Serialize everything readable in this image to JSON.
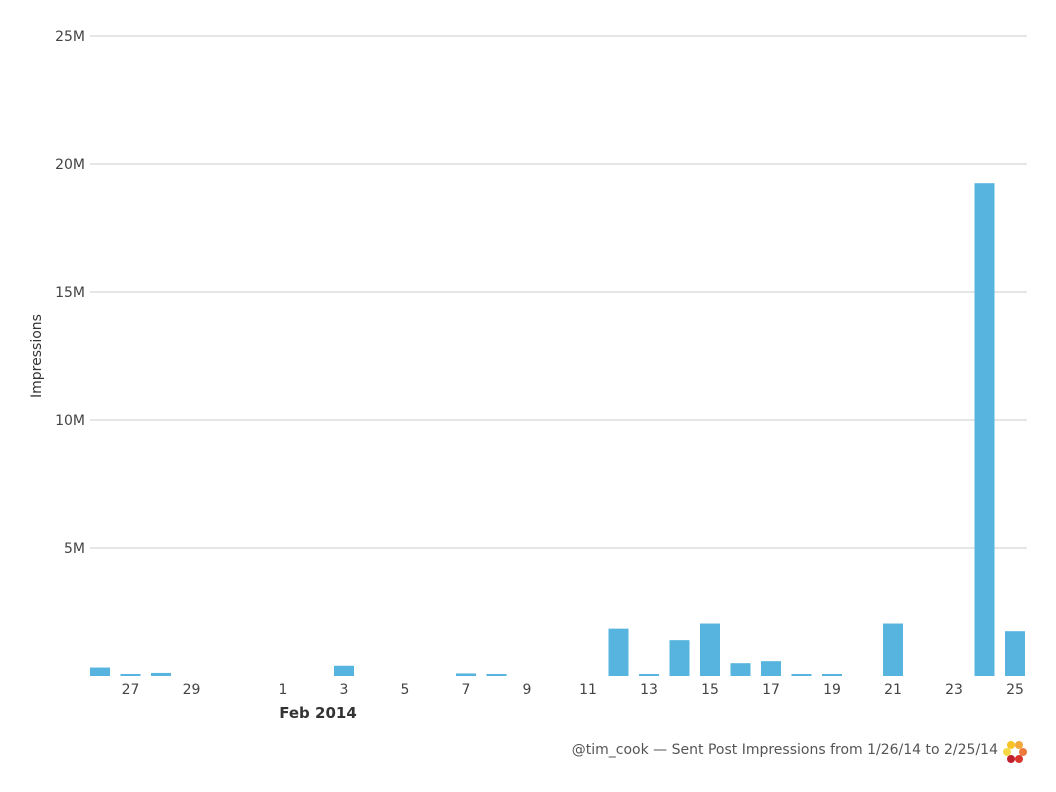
{
  "chart_data": {
    "type": "bar",
    "title": "",
    "xlabel": "",
    "ylabel": "Impressions",
    "ylim": [
      0,
      25000000
    ],
    "yticks": [
      {
        "value": 5000000,
        "label": "5M"
      },
      {
        "value": 10000000,
        "label": "10M"
      },
      {
        "value": 15000000,
        "label": "15M"
      },
      {
        "value": 20000000,
        "label": "20M"
      },
      {
        "value": 25000000,
        "label": "25M"
      }
    ],
    "grid": true,
    "legend": "none",
    "bar_color": "#56b4df",
    "grid_color": "#dddddd",
    "categories": [
      "2014-01-26",
      "2014-01-27",
      "2014-01-28",
      "2014-01-29",
      "2014-01-30",
      "2014-01-31",
      "2014-02-01",
      "2014-02-02",
      "2014-02-03",
      "2014-02-04",
      "2014-02-05",
      "2014-02-06",
      "2014-02-07",
      "2014-02-08",
      "2014-02-09",
      "2014-02-10",
      "2014-02-11",
      "2014-02-12",
      "2014-02-13",
      "2014-02-14",
      "2014-02-15",
      "2014-02-16",
      "2014-02-17",
      "2014-02-18",
      "2014-02-19",
      "2014-02-20",
      "2014-02-21",
      "2014-02-22",
      "2014-02-23",
      "2014-02-24",
      "2014-02-25"
    ],
    "values": [
      330000,
      50000,
      120000,
      0,
      0,
      0,
      0,
      0,
      400000,
      0,
      0,
      0,
      100000,
      60000,
      0,
      0,
      0,
      1850000,
      60000,
      1400000,
      2050000,
      500000,
      580000,
      60000,
      60000,
      0,
      2050000,
      0,
      0,
      19250000,
      1750000
    ],
    "xtick_labels": [
      {
        "index": 1,
        "label": "27"
      },
      {
        "index": 3,
        "label": "29"
      },
      {
        "index": 6,
        "label": "1"
      },
      {
        "index": 8,
        "label": "3"
      },
      {
        "index": 10,
        "label": "5"
      },
      {
        "index": 12,
        "label": "7"
      },
      {
        "index": 14,
        "label": "9"
      },
      {
        "index": 16,
        "label": "11"
      },
      {
        "index": 18,
        "label": "13"
      },
      {
        "index": 20,
        "label": "15"
      },
      {
        "index": 22,
        "label": "17"
      },
      {
        "index": 24,
        "label": "19"
      },
      {
        "index": 26,
        "label": "21"
      },
      {
        "index": 28,
        "label": "23"
      },
      {
        "index": 30,
        "label": "25"
      }
    ],
    "month_label": {
      "index": 6,
      "label": "Feb 2014"
    }
  },
  "footer": {
    "text": "@tim_cook — Sent Post Impressions from 1/26/14 to 2/25/14",
    "logo_icon": "sprout-social-logo-icon"
  }
}
